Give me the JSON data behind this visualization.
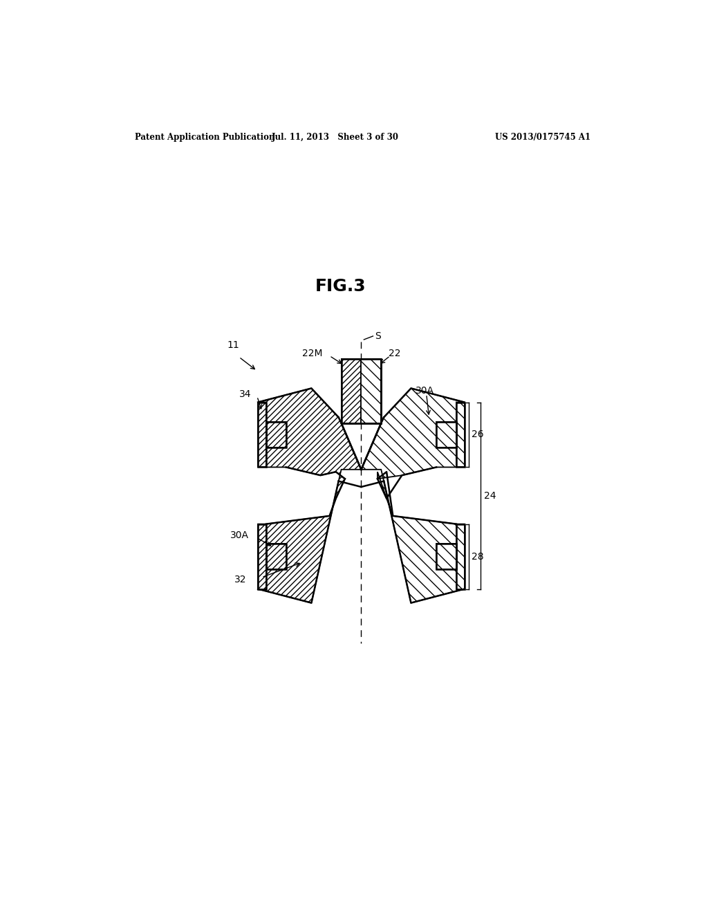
{
  "background_color": "#ffffff",
  "header_left": "Patent Application Publication",
  "header_mid": "Jul. 11, 2013   Sheet 3 of 30",
  "header_right": "US 2013/0175745 A1",
  "fig_label": "FIG.3",
  "line_color": "#000000",
  "DCX": 0.497,
  "DCY": 0.455,
  "sc": 0.00165,
  "lw": 1.3,
  "lw_thick": 1.8,
  "fontsize_label": 10,
  "fontsize_fig": 18
}
